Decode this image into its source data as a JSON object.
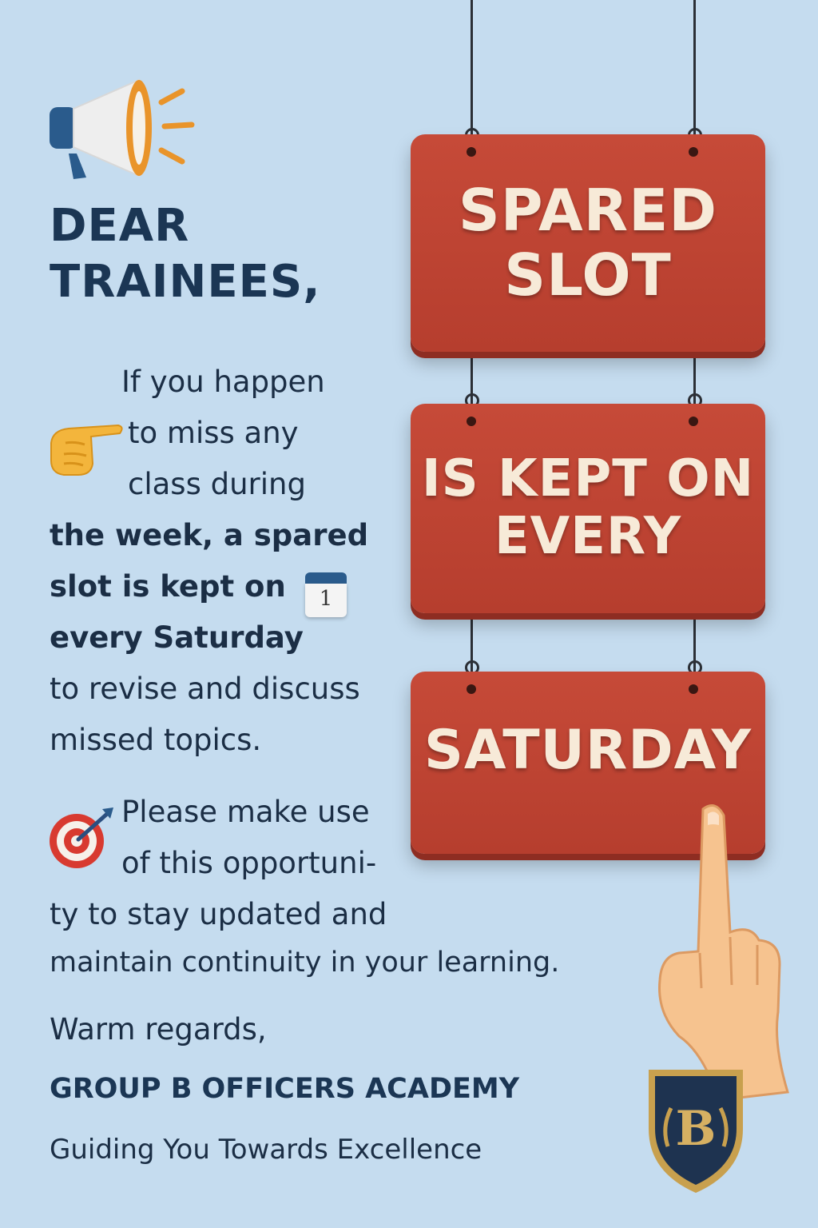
{
  "heading": {
    "line1": "DEAR",
    "line2": "TRAINEES,"
  },
  "signs": [
    {
      "line1": "SPARED",
      "line2": "SLOT"
    },
    {
      "line1": "IS KEPT ON",
      "line2": "EVERY"
    },
    {
      "line1": "SATURDAY"
    }
  ],
  "body": {
    "lines": [
      "If you happen",
      "to miss any",
      "class during",
      "the week, a spared",
      "slot is kept on",
      "every Saturday",
      "to revise and discuss",
      "missed topics."
    ]
  },
  "opportunity": {
    "lines": [
      "Please make use",
      "of this opportuni-",
      "ty to stay updated and",
      "maintain continuity in your learning."
    ]
  },
  "closing": "Warm regards,",
  "academy": {
    "name": "GROUP B OFFICERS ACADEMY",
    "tagline": "Guiding You Towards Excellence"
  },
  "crest": {
    "letter": "B"
  },
  "calendar": {
    "day": "1"
  },
  "icons": [
    "megaphone-icon",
    "pointing-hand-icon",
    "calendar-icon",
    "target-icon",
    "pointing-up-hand-icon",
    "crest-icon"
  ],
  "colors": {
    "background": "#c5dcef",
    "sign": "#b8412f",
    "sign_text": "#f7ead8",
    "heading": "#1b3654",
    "accent": "#e9942a"
  }
}
